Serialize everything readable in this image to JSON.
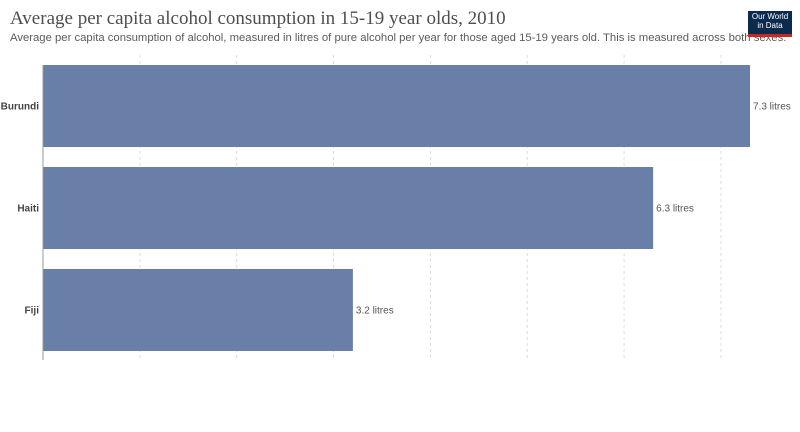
{
  "title": "Average per capita alcohol consumption in 15-19 year olds, 2010",
  "subtitle": "Average per capita consumption of alcohol, measured in litres of pure alcohol per year for those aged 15-19 years old. This is measured across both sexes.",
  "logo": {
    "line1": "Our World",
    "line2": "in Data"
  },
  "colors": {
    "bar": "#6a7fa8",
    "grid": "#dddddd",
    "axis": "#999999"
  },
  "chart_data": {
    "type": "bar",
    "orientation": "horizontal",
    "categories": [
      "Burundi",
      "Haiti",
      "Fiji"
    ],
    "values": [
      7.3,
      6.3,
      3.2
    ],
    "value_labels": [
      "7.3 litres",
      "6.3 litres",
      "3.2 litres"
    ],
    "unit": "litres",
    "xlim": [
      0,
      7.3
    ],
    "gridlines": [
      0,
      1,
      2,
      3,
      4,
      5,
      6,
      7
    ],
    "grid": true
  }
}
